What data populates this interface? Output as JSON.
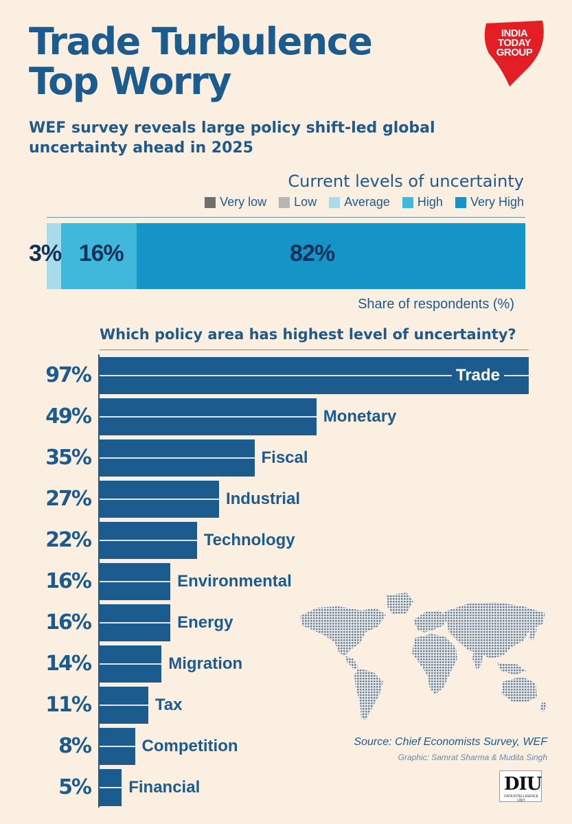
{
  "title_line1": "Trade Turbulence",
  "title_line2": "Top Worry",
  "subtitle": "WEF survey reveals large policy shift-led global uncertainty ahead in 2025",
  "logo": {
    "line1": "INDIA",
    "line2": "TODAY",
    "line3": "GROUP",
    "color": "#e31e24"
  },
  "chart_data": [
    {
      "type": "bar",
      "orientation": "horizontal-stacked",
      "title": "Current levels of uncertainty",
      "xlabel": "Share of respondents (%)",
      "legend": [
        {
          "name": "Very low",
          "color": "#6e6e6e"
        },
        {
          "name": "Low",
          "color": "#b5b5b5"
        },
        {
          "name": "Average",
          "color": "#a9dcea"
        },
        {
          "name": "High",
          "color": "#3fb8dc"
        },
        {
          "name": "Very High",
          "color": "#1594c8"
        }
      ],
      "series": [
        {
          "name": "Average",
          "value": 3,
          "label": "3%",
          "color": "#a9dcea"
        },
        {
          "name": "High",
          "value": 16,
          "label": "16%",
          "color": "#3fb8dc"
        },
        {
          "name": "Very High",
          "value": 82,
          "label": "82%",
          "color": "#1594c8"
        }
      ],
      "xlim": [
        0,
        101
      ]
    },
    {
      "type": "bar",
      "orientation": "horizontal",
      "title": "Which policy area has highest level of uncertainty?",
      "categories": [
        "Trade",
        "Monetary",
        "Fiscal",
        "Industrial",
        "Technology",
        "Environmental",
        "Energy",
        "Migration",
        "Tax",
        "Competition",
        "Financial"
      ],
      "values": [
        97,
        49,
        35,
        27,
        22,
        16,
        16,
        14,
        11,
        8,
        5
      ],
      "labels": [
        "97%",
        "49%",
        "35%",
        "27%",
        "22%",
        "16%",
        "16%",
        "14%",
        "11%",
        "8%",
        "5%"
      ],
      "xlim": [
        0,
        97
      ],
      "color": "#1c5b8d"
    }
  ],
  "source": "Source: Chief Economists Survey, WEF",
  "credit": "Graphic: Samrat Sharma & Mudita Singh",
  "diu": {
    "text": "DIU",
    "small": "DATA INTELLIGENCE UNIT"
  }
}
